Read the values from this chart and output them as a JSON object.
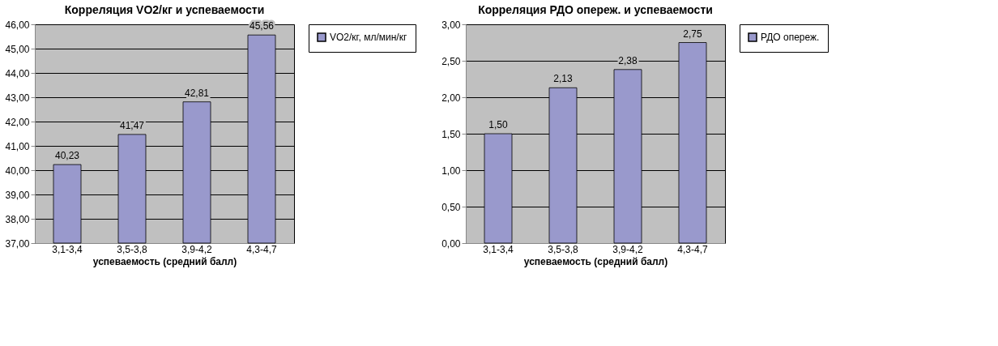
{
  "chart_data": [
    {
      "type": "bar",
      "title": "Корреляция VO2/кг и успеваемости",
      "xlabel": "успеваемость (средний балл)",
      "categories": [
        "3,1-3,4",
        "3,5-3,8",
        "3,9-4,2",
        "4,3-4,7"
      ],
      "series": [
        {
          "name": "VO2/кг, мл/мин/кг",
          "color": "#9999cc",
          "values": [
            40.23,
            41.47,
            42.81,
            45.56
          ],
          "value_labels": [
            "40,23",
            "41,47",
            "42,81",
            "45,56"
          ]
        }
      ],
      "ylim": [
        37,
        46
      ],
      "yticks": [
        {
          "value": 37,
          "label": "37,00"
        },
        {
          "value": 38,
          "label": "38,00"
        },
        {
          "value": 39,
          "label": "39,00"
        },
        {
          "value": 40,
          "label": "40,00"
        },
        {
          "value": 41,
          "label": "41,00"
        },
        {
          "value": 42,
          "label": "42,00"
        },
        {
          "value": 43,
          "label": "43,00"
        },
        {
          "value": 44,
          "label": "44,00"
        },
        {
          "value": 45,
          "label": "45,00"
        },
        {
          "value": 46,
          "label": "46,00"
        }
      ],
      "grid": "y",
      "legend": "right"
    },
    {
      "type": "bar",
      "title": "Корреляция РДО опереж. и успеваемости",
      "xlabel": "успеваемость (средний балл)",
      "categories": [
        "3,1-3,4",
        "3,5-3,8",
        "3,9-4,2",
        "4,3-4,7"
      ],
      "series": [
        {
          "name": "РДО опереж.",
          "color": "#9999cc",
          "values": [
            1.5,
            2.13,
            2.38,
            2.75
          ],
          "value_labels": [
            "1,50",
            "2,13",
            "2,38",
            "2,75"
          ]
        }
      ],
      "ylim": [
        0,
        3
      ],
      "yticks": [
        {
          "value": 0,
          "label": "0,00"
        },
        {
          "value": 0.5,
          "label": "0,50"
        },
        {
          "value": 1,
          "label": "1,00"
        },
        {
          "value": 1.5,
          "label": "1,50"
        },
        {
          "value": 2,
          "label": "2,00"
        },
        {
          "value": 2.5,
          "label": "2,50"
        },
        {
          "value": 3,
          "label": "3,00"
        }
      ],
      "grid": "y",
      "legend": "right"
    }
  ]
}
